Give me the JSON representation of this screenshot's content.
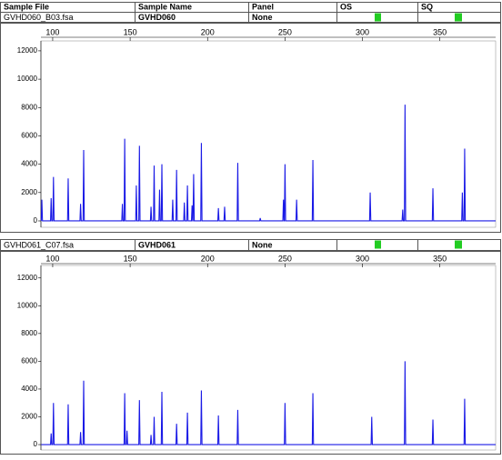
{
  "columns": [
    "Sample File",
    "Sample Name",
    "Panel",
    "OS",
    "SQ"
  ],
  "samples": [
    {
      "file": "GVHD060_B03.fsa",
      "name": "GVHD060",
      "panel": "None"
    },
    {
      "file": "GVHD061_C07.fsa",
      "name": "GVHD061",
      "panel": "None"
    }
  ],
  "chart_data": [
    {
      "type": "line",
      "color": "#1a1ae6",
      "xlim": [
        92.4,
        386
      ],
      "xticks": [
        100,
        150,
        200,
        250,
        300,
        350
      ],
      "ylim": [
        -450,
        12700
      ],
      "yticks": [
        0,
        2000,
        4000,
        6000,
        8000,
        10000,
        12000
      ],
      "x": [
        92.6,
        93,
        93.4,
        98.6,
        99,
        99.4,
        100.1,
        100.5,
        100.9,
        109.6,
        110,
        110.4,
        117.6,
        118,
        118.4,
        119.6,
        120,
        120.4,
        144.6,
        145,
        145.4,
        146.1,
        146.5,
        146.9,
        153.6,
        154,
        154.4,
        155.6,
        156,
        156.4,
        163.1,
        163.5,
        163.9,
        165.1,
        165.5,
        165.9,
        168.6,
        169,
        169.4,
        170.1,
        170.5,
        170.9,
        177.1,
        177.5,
        177.9,
        179.6,
        180,
        180.4,
        184.6,
        185,
        185.4,
        186.6,
        187,
        187.4,
        189.6,
        190,
        190.4,
        190.6,
        191,
        191.4,
        195.6,
        196,
        196.4,
        206.6,
        207,
        207.4,
        210.6,
        211,
        211.4,
        219.1,
        219.5,
        219.9,
        233.6,
        234,
        234.4,
        248.6,
        249,
        249.4,
        249.6,
        250,
        250.4,
        257.1,
        257.5,
        257.9,
        267.6,
        268,
        268.4,
        304.6,
        305,
        305.4,
        325.6,
        326,
        326.4,
        327.1,
        327.5,
        327.9,
        345.1,
        345.5,
        345.9,
        364.1,
        364.5,
        364.9,
        365.6,
        366,
        366.4,
        386
      ],
      "values": [
        0,
        1500,
        0,
        0,
        1600,
        0,
        0,
        3100,
        0,
        0,
        3000,
        0,
        0,
        1200,
        0,
        0,
        5000,
        0,
        0,
        1200,
        0,
        0,
        5800,
        0,
        0,
        2500,
        0,
        0,
        5300,
        0,
        0,
        1000,
        0,
        0,
        3900,
        0,
        0,
        2200,
        0,
        0,
        4000,
        0,
        0,
        1500,
        0,
        0,
        3600,
        0,
        0,
        1300,
        0,
        0,
        2500,
        0,
        0,
        1100,
        0,
        0,
        3300,
        0,
        0,
        5500,
        0,
        0,
        900,
        0,
        0,
        1000,
        0,
        0,
        4100,
        0,
        0,
        200,
        0,
        0,
        1500,
        0,
        0,
        4000,
        0,
        0,
        1500,
        0,
        0,
        4300,
        0,
        0,
        2000,
        0,
        0,
        800,
        0,
        0,
        8200,
        0,
        0,
        2300,
        0,
        0,
        2000,
        0,
        0,
        5100,
        0,
        0
      ]
    },
    {
      "type": "line",
      "color": "#1a1ae6",
      "xlim": [
        92.4,
        386
      ],
      "xticks": [
        100,
        150,
        200,
        250,
        300,
        350
      ],
      "ylim": [
        -390,
        12900
      ],
      "yticks": [
        0,
        2000,
        4000,
        6000,
        8000,
        10000,
        12000
      ],
      "x": [
        92.6,
        98.6,
        99,
        99.4,
        100.1,
        100.5,
        100.9,
        109.6,
        110,
        110.4,
        117.6,
        118,
        118.4,
        119.6,
        120,
        120.4,
        146.1,
        146.5,
        146.9,
        147.6,
        148,
        148.4,
        155.6,
        156,
        156.4,
        163.1,
        163.5,
        163.9,
        165.1,
        165.5,
        165.9,
        170.1,
        170.5,
        170.9,
        179.6,
        180,
        180.4,
        186.6,
        187,
        187.4,
        195.6,
        196,
        196.4,
        206.6,
        207,
        207.4,
        219.1,
        219.5,
        219.9,
        249.6,
        250,
        250.4,
        267.6,
        268,
        268.4,
        305.6,
        306,
        306.4,
        327.1,
        327.5,
        327.9,
        345.1,
        345.5,
        345.9,
        365.6,
        366,
        366.4,
        386
      ],
      "values": [
        0,
        0,
        800,
        0,
        0,
        3000,
        0,
        0,
        2900,
        0,
        0,
        900,
        0,
        0,
        4600,
        0,
        0,
        3700,
        0,
        0,
        1000,
        0,
        0,
        3200,
        0,
        0,
        700,
        0,
        0,
        2000,
        0,
        0,
        3800,
        0,
        0,
        1500,
        0,
        0,
        2300,
        0,
        0,
        3900,
        0,
        0,
        2100,
        0,
        0,
        2500,
        0,
        0,
        3000,
        0,
        0,
        3700,
        0,
        0,
        2000,
        0,
        0,
        6000,
        0,
        0,
        1800,
        0,
        0,
        3300,
        0,
        0
      ]
    }
  ]
}
